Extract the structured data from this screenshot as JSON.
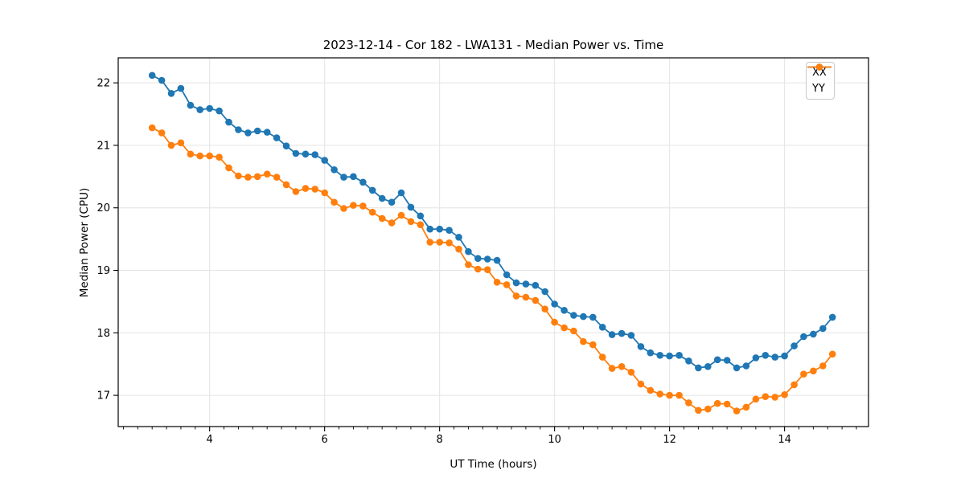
{
  "figure": {
    "background": "#ffffff"
  },
  "chart_data": {
    "type": "line",
    "title": "2023-12-14 - Cor 182 - LWA131 - Median Power vs. Time",
    "xlabel": "UT Time (hours)",
    "ylabel": "Median Power (CPU)",
    "xlim": [
      2.41,
      15.46
    ],
    "ylim": [
      16.5,
      22.4
    ],
    "x_major_ticks": [
      4,
      6,
      8,
      10,
      12,
      14
    ],
    "x_minor_tick_step": 0.25,
    "y_major_ticks": [
      17,
      18,
      19,
      20,
      21,
      22
    ],
    "grid": "major-only",
    "legend_position": "upper-right",
    "colors": {
      "grid": "#e4e4e4",
      "spine": "#000000",
      "tick": "#000000",
      "series_xx": "#1f77b4",
      "series_yy": "#ff7f0e"
    },
    "x": [
      3.0,
      3.167,
      3.333,
      3.5,
      3.667,
      3.833,
      4.0,
      4.167,
      4.333,
      4.5,
      4.667,
      4.833,
      5.0,
      5.167,
      5.333,
      5.5,
      5.667,
      5.833,
      6.0,
      6.167,
      6.333,
      6.5,
      6.667,
      6.833,
      7.0,
      7.167,
      7.333,
      7.5,
      7.667,
      7.833,
      8.0,
      8.167,
      8.333,
      8.5,
      8.667,
      8.833,
      9.0,
      9.167,
      9.333,
      9.5,
      9.667,
      9.833,
      10.0,
      10.167,
      10.333,
      10.5,
      10.667,
      10.833,
      11.0,
      11.167,
      11.333,
      11.5,
      11.667,
      11.833,
      12.0,
      12.167,
      12.333,
      12.5,
      12.667,
      12.833,
      13.0,
      13.167,
      13.333,
      13.5,
      13.667,
      13.833,
      14.0,
      14.167,
      14.333,
      14.5,
      14.667,
      14.833
    ],
    "series": [
      {
        "name": "XX",
        "color": "#1f77b4",
        "marker": "circle",
        "values": [
          22.12,
          22.04,
          21.83,
          21.91,
          21.64,
          21.57,
          21.59,
          21.55,
          21.37,
          21.25,
          21.2,
          21.23,
          21.21,
          21.12,
          20.99,
          20.87,
          20.86,
          20.85,
          20.76,
          20.61,
          20.49,
          20.5,
          20.41,
          20.28,
          20.15,
          20.09,
          20.24,
          20.01,
          19.87,
          19.66,
          19.66,
          19.64,
          19.53,
          19.3,
          19.19,
          19.18,
          19.16,
          18.93,
          18.8,
          18.78,
          18.76,
          18.66,
          18.46,
          18.36,
          18.28,
          18.26,
          18.25,
          18.09,
          17.97,
          17.99,
          17.96,
          17.78,
          17.68,
          17.64,
          17.63,
          17.64,
          17.55,
          17.44,
          17.46,
          17.57,
          17.56,
          17.44,
          17.47,
          17.6,
          17.64,
          17.61,
          17.63,
          17.79,
          17.94,
          17.98,
          18.07,
          18.25
        ]
      },
      {
        "name": "YY",
        "color": "#ff7f0e",
        "marker": "circle",
        "values": [
          21.28,
          21.2,
          21.0,
          21.04,
          20.86,
          20.83,
          20.83,
          20.81,
          20.64,
          20.51,
          20.49,
          20.5,
          20.54,
          20.49,
          20.37,
          20.26,
          20.31,
          20.3,
          20.24,
          20.09,
          19.99,
          20.04,
          20.03,
          19.93,
          19.83,
          19.76,
          19.88,
          19.78,
          19.73,
          19.45,
          19.45,
          19.44,
          19.34,
          19.09,
          19.02,
          19.01,
          18.81,
          18.77,
          18.59,
          18.57,
          18.52,
          18.38,
          18.17,
          18.08,
          18.03,
          17.86,
          17.81,
          17.61,
          17.43,
          17.46,
          17.37,
          17.18,
          17.08,
          17.02,
          17.0,
          17.0,
          16.88,
          16.76,
          16.78,
          16.87,
          16.86,
          16.75,
          16.81,
          16.94,
          16.98,
          16.97,
          17.01,
          17.17,
          17.34,
          17.39,
          17.47,
          17.66
        ]
      }
    ]
  }
}
